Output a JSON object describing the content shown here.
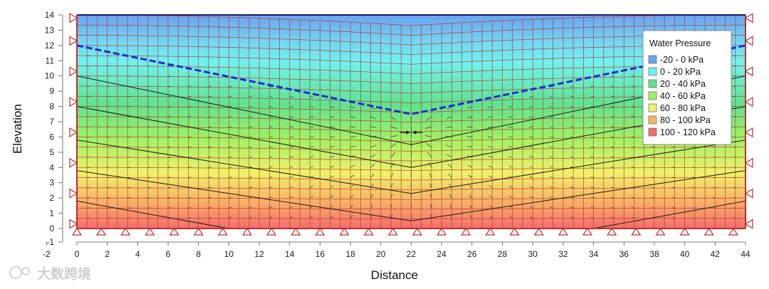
{
  "chart_data": {
    "type": "heatmap",
    "title": "",
    "xlabel": "Distance",
    "ylabel": "Elevation",
    "xlim": [
      -2,
      44
    ],
    "ylim": [
      -1,
      14
    ],
    "xticks": [
      -2,
      0,
      2,
      4,
      6,
      8,
      10,
      12,
      14,
      16,
      18,
      20,
      22,
      24,
      26,
      28,
      30,
      32,
      34,
      36,
      38,
      40,
      42,
      44
    ],
    "yticks": [
      -1,
      0,
      1,
      2,
      3,
      4,
      5,
      6,
      7,
      8,
      9,
      10,
      11,
      12,
      13,
      14
    ],
    "domain": {
      "x_min": 0,
      "x_max": 44,
      "y_min": 0,
      "y_max": 14
    },
    "legend": {
      "title": "Water Pressure",
      "position": "top-right",
      "items": [
        {
          "label": "-20 - 0 kPa",
          "color": "#6aa3f0"
        },
        {
          "label": "0 - 20 kPa",
          "color": "#6ff2ef"
        },
        {
          "label": "20 - 40 kPa",
          "color": "#5fe38f"
        },
        {
          "label": "40 - 60 kPa",
          "color": "#9ef264"
        },
        {
          "label": "60 - 80 kPa",
          "color": "#eef26a"
        },
        {
          "label": "80 - 100 kPa",
          "color": "#f7b468"
        },
        {
          "label": "100 - 120 kPa",
          "color": "#f56d6d"
        }
      ]
    },
    "water_table": {
      "x": [
        0,
        22,
        44
      ],
      "y": [
        12.0,
        7.5,
        12.0
      ]
    },
    "pressure_contours": [
      {
        "value_kpa": 20,
        "x": [
          0,
          22,
          44
        ],
        "y": [
          10.0,
          5.5,
          10.0
        ]
      },
      {
        "value_kpa": 40,
        "x": [
          0,
          22,
          44
        ],
        "y": [
          8.0,
          4.0,
          8.0
        ]
      },
      {
        "value_kpa": 60,
        "x": [
          0,
          22,
          44
        ],
        "y": [
          5.8,
          2.3,
          5.8
        ]
      },
      {
        "value_kpa": 80,
        "x": [
          0,
          22,
          44
        ],
        "y": [
          3.8,
          0.5,
          3.8
        ]
      },
      {
        "value_kpa": 100,
        "x": [
          0,
          10,
          22,
          34,
          44
        ],
        "y": [
          1.8,
          0.0,
          0.0,
          0.0,
          1.8
        ]
      }
    ],
    "sink_location": {
      "x": 22,
      "y": 6.3
    },
    "mesh_divisions": {
      "columns": 66,
      "rows": 21
    }
  },
  "watermark": {
    "text": "大数跨境"
  }
}
